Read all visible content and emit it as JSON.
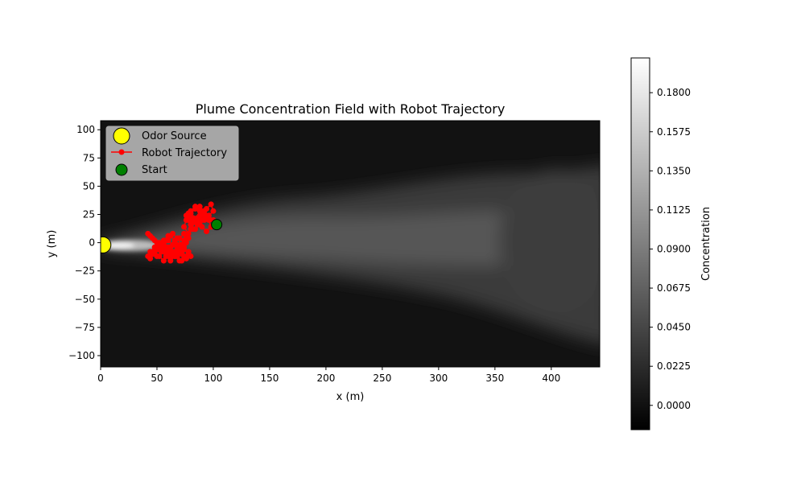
{
  "chart_data": {
    "type": "heatmap",
    "title": "Plume Concentration Field with Robot Trajectory",
    "xlabel": "x (m)",
    "ylabel": "y (m)",
    "xlim": [
      0,
      443
    ],
    "ylim": [
      -110,
      108
    ],
    "xticks": [
      0,
      50,
      100,
      150,
      200,
      250,
      300,
      350,
      400
    ],
    "yticks": [
      -100,
      -75,
      -50,
      -25,
      0,
      25,
      50,
      75,
      100
    ],
    "grid": false,
    "colormap": "gray",
    "colorbar": {
      "label": "Concentration",
      "range": [
        -0.014,
        0.2
      ],
      "ticks": [
        -0.0,
        0.0225,
        0.045,
        0.0675,
        0.09,
        0.1125,
        0.135,
        0.1575,
        0.18
      ],
      "tick_labels": [
        "0.0000",
        "0.0225",
        "0.0450",
        "0.0675",
        "0.0900",
        "0.1125",
        "0.1350",
        "0.1575",
        "0.1800"
      ]
    },
    "legend": {
      "placement": "upper left",
      "entries": [
        {
          "label": "Odor Source",
          "marker": "circle",
          "color": "#ffff00",
          "edge": "#000000"
        },
        {
          "label": "Robot Trajectory",
          "marker": "line-dot",
          "color": "#ff0000"
        },
        {
          "label": "Start",
          "marker": "circle",
          "color": "#008000",
          "edge": "#000000"
        }
      ]
    },
    "series": [
      {
        "name": "Odor Source",
        "kind": "scatter",
        "color": "#ffff00",
        "points": [
          [
            2,
            -2
          ]
        ]
      },
      {
        "name": "Robot Trajectory",
        "kind": "line",
        "color": "#ff0000",
        "x": [
          103,
          100,
          96,
          92,
          88,
          84,
          80,
          78,
          82,
          86,
          90,
          94,
          98,
          100,
          96,
          92,
          88,
          84,
          80,
          78,
          76,
          80,
          84,
          88,
          92,
          96,
          98,
          94,
          90,
          86,
          82,
          78,
          76,
          74,
          78,
          82,
          86,
          90,
          94,
          92,
          88,
          84,
          80,
          76,
          74,
          72,
          68,
          64,
          60,
          56,
          52,
          48,
          44,
          42,
          46,
          50,
          54,
          58,
          62,
          66,
          70,
          74,
          78,
          76,
          72,
          68,
          64,
          60,
          56,
          52,
          48,
          44,
          42,
          46,
          50,
          54,
          58,
          62,
          66,
          70,
          74,
          78,
          80,
          76,
          72,
          68,
          64,
          60,
          56,
          52,
          48,
          44,
          46,
          50,
          54,
          58,
          62,
          66,
          70,
          74,
          78,
          76,
          72,
          68,
          64,
          60,
          56,
          52,
          48,
          50,
          54,
          58,
          62,
          66,
          70,
          74,
          72,
          68,
          64,
          60,
          56,
          52
        ],
        "y": [
          16,
          20,
          24,
          28,
          32,
          30,
          26,
          22,
          18,
          22,
          26,
          30,
          34,
          28,
          24,
          20,
          16,
          12,
          16,
          20,
          24,
          28,
          32,
          28,
          24,
          20,
          14,
          10,
          14,
          18,
          22,
          26,
          20,
          14,
          8,
          12,
          16,
          20,
          24,
          28,
          24,
          18,
          12,
          6,
          2,
          -2,
          4,
          8,
          6,
          2,
          -2,
          2,
          6,
          8,
          4,
          0,
          -4,
          -8,
          -4,
          0,
          4,
          8,
          4,
          0,
          -4,
          -8,
          -12,
          -8,
          -4,
          0,
          -4,
          -8,
          -12,
          -8,
          -4,
          -8,
          -12,
          -16,
          -12,
          -8,
          -4,
          -8,
          -12,
          -14,
          -10,
          -6,
          -2,
          2,
          -2,
          -6,
          -10,
          -14,
          -10,
          -6,
          -2,
          2,
          6,
          2,
          -2,
          -6,
          -10,
          -14,
          -16,
          -12,
          -8,
          -4,
          0,
          -4,
          -8,
          -12,
          -8,
          -4,
          -8,
          -12,
          -16,
          -12,
          -8,
          -4,
          -8,
          -12,
          -16,
          -12
        ]
      },
      {
        "name": "Start",
        "kind": "scatter",
        "color": "#008000",
        "points": [
          [
            103,
            16
          ]
        ]
      }
    ]
  }
}
